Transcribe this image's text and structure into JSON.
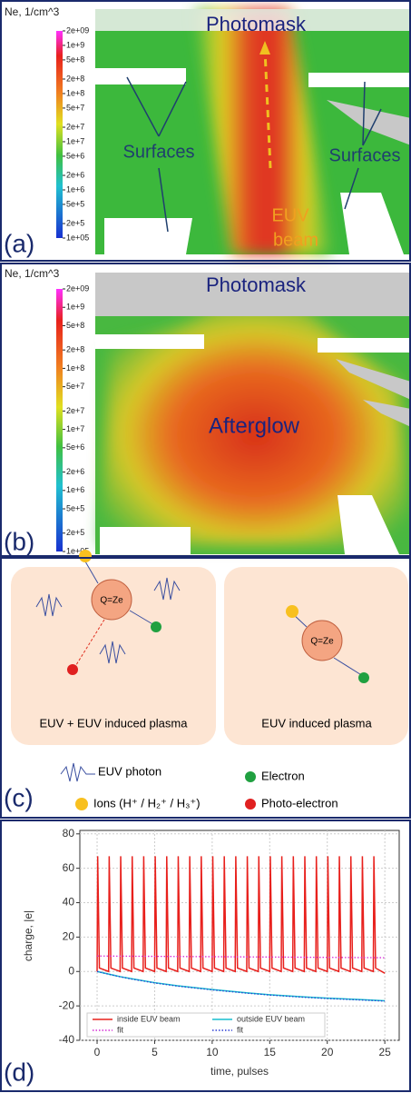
{
  "panel_a": {
    "label": "(a)",
    "colorbar": {
      "title": "Ne, 1/cm^3",
      "scale": "log",
      "lim": [
        100000,
        2000000000
      ],
      "ticks": [
        {
          "value": 2000000000,
          "label": "2e+09"
        },
        {
          "value": 1000000000,
          "label": "1e+9"
        },
        {
          "value": 500000000,
          "label": "5e+8"
        },
        {
          "value": 200000000,
          "label": "2e+8"
        },
        {
          "value": 100000000,
          "label": "1e+8"
        },
        {
          "value": 50000000,
          "label": "5e+7"
        },
        {
          "value": 20000000,
          "label": "2e+7"
        },
        {
          "value": 10000000,
          "label": "1e+7"
        },
        {
          "value": 5000000,
          "label": "5e+6"
        },
        {
          "value": 2000000,
          "label": "2e+6"
        },
        {
          "value": 1000000,
          "label": "1e+6"
        },
        {
          "value": 500000,
          "label": "5e+5"
        },
        {
          "value": 200000,
          "label": "2e+5"
        },
        {
          "value": 100000,
          "label": "1e+05"
        }
      ]
    },
    "photomask": "Photomask",
    "surfaces_left": "Surfaces",
    "surfaces_right": "Surfaces",
    "beam_line1": "EUV",
    "beam_line2": "beam"
  },
  "panel_b": {
    "label": "(b)",
    "colorbar": {
      "title": "Ne, 1/cm^3",
      "scale": "log",
      "lim": [
        100000,
        2000000000
      ],
      "ticks": [
        {
          "value": 2000000000,
          "label": "2e+09"
        },
        {
          "value": 1000000000,
          "label": "1e+9"
        },
        {
          "value": 500000000,
          "label": "5e+8"
        },
        {
          "value": 200000000,
          "label": "2e+8"
        },
        {
          "value": 100000000,
          "label": "1e+8"
        },
        {
          "value": 50000000,
          "label": "5e+7"
        },
        {
          "value": 20000000,
          "label": "2e+7"
        },
        {
          "value": 10000000,
          "label": "1e+7"
        },
        {
          "value": 5000000,
          "label": "5e+6"
        },
        {
          "value": 2000000,
          "label": "2e+6"
        },
        {
          "value": 1000000,
          "label": "1e+6"
        },
        {
          "value": 500000,
          "label": "5e+5"
        },
        {
          "value": 200000,
          "label": "2e+5"
        },
        {
          "value": 100000,
          "label": "1e+05"
        }
      ]
    },
    "photomask": "Photomask",
    "afterglow": "Afterglow"
  },
  "panel_c": {
    "label": "(c)",
    "left_box": {
      "charge": "Q=Ze",
      "caption": "EUV + EUV induced plasma"
    },
    "right_box": {
      "charge": "Q=Ze",
      "caption": "EUV induced plasma"
    },
    "legend": {
      "photon": "EUV photon",
      "electron": "Electron",
      "ions": "Ions (H⁺ / H₂⁺ / H₃⁺)",
      "photoelectron": "Photo-electron"
    }
  },
  "panel_d": {
    "label": "(d)"
  },
  "chart_data": {
    "type": "line",
    "xlabel": "time, pulses",
    "ylabel": "charge, |e|",
    "xlim": [
      -1.5,
      26.25
    ],
    "ylim": [
      -40,
      82
    ],
    "xticks": [
      0,
      5,
      10,
      15,
      20,
      25
    ],
    "yticks": [
      -40,
      -20,
      0,
      20,
      40,
      60,
      80
    ],
    "grid": true,
    "legend": "lower left",
    "series": [
      {
        "name": "inside EUV beam",
        "color": "#e8201c",
        "linestyle": "solid",
        "x": [
          0,
          0.05,
          0.2,
          1,
          1.05,
          1.2,
          2,
          2.05,
          2.2,
          3,
          3.05,
          3.2,
          4,
          4.05,
          4.2,
          5,
          5.05,
          5.2,
          6,
          6.05,
          6.2,
          7,
          7.05,
          7.2,
          8,
          8.05,
          8.2,
          9,
          9.05,
          9.2,
          10,
          10.05,
          10.2,
          11,
          11.05,
          11.2,
          12,
          12.05,
          12.2,
          13,
          13.05,
          13.2,
          14,
          14.05,
          14.2,
          15,
          15.05,
          15.2,
          16,
          16.05,
          16.2,
          17,
          17.05,
          17.2,
          18,
          18.05,
          18.2,
          19,
          19.05,
          19.2,
          20,
          20.05,
          20.2,
          21,
          21.05,
          21.2,
          22,
          22.05,
          22.2,
          23,
          23.05,
          23.2,
          24,
          24.05,
          24.2,
          25
        ],
        "values": [
          0,
          67,
          2,
          0,
          67,
          2,
          0,
          67,
          2,
          0,
          67,
          2,
          0,
          67,
          2,
          0,
          67,
          2,
          0,
          67,
          2,
          0,
          67,
          2,
          0,
          67,
          2,
          0,
          67,
          2,
          0,
          67,
          2,
          0,
          67,
          2,
          0,
          67,
          2,
          0,
          67,
          2,
          0,
          67,
          2,
          0,
          67,
          2,
          0,
          67,
          2,
          0,
          67,
          2,
          0,
          67,
          2,
          0,
          67,
          2,
          0,
          67,
          2,
          0,
          67,
          2,
          0,
          67,
          2,
          0,
          67,
          2,
          0,
          67,
          2,
          -1
        ]
      },
      {
        "name": "outside EUV beam",
        "color": "#17becf",
        "linestyle": "solid",
        "x": [
          0,
          1,
          2,
          3,
          5,
          7,
          10,
          13,
          15,
          18,
          20,
          23,
          25
        ],
        "values": [
          0,
          -1.5,
          -3,
          -4.2,
          -6.5,
          -8.3,
          -10.5,
          -12.4,
          -13.5,
          -14.8,
          -15.5,
          -16.4,
          -17
        ]
      },
      {
        "name": "fit",
        "color": "#d62bd6",
        "linestyle": "dotted",
        "x": [
          0,
          25
        ],
        "values": [
          9,
          8
        ]
      },
      {
        "name": "fit",
        "color": "#2c3fd6",
        "linestyle": "dotted",
        "x": [
          0,
          1,
          2,
          3,
          5,
          7,
          10,
          13,
          15,
          18,
          20,
          23,
          25
        ],
        "values": [
          0,
          -1.6,
          -3.1,
          -4.4,
          -6.7,
          -8.5,
          -10.7,
          -12.6,
          -13.7,
          -15,
          -15.7,
          -16.6,
          -17.2
        ]
      }
    ]
  }
}
